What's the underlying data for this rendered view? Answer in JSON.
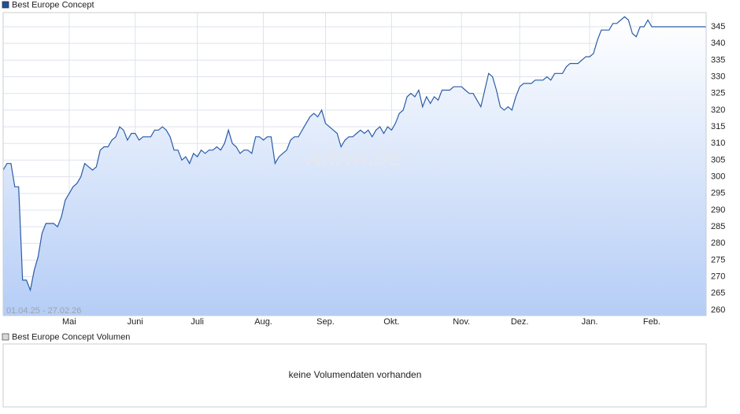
{
  "chart_data": {
    "type": "line",
    "series": [
      {
        "name": "Best Europe Concept",
        "color": "#2a5ca8",
        "values": [
          302,
          304,
          304,
          297,
          297,
          269,
          269,
          266,
          272,
          276,
          283,
          286,
          286,
          286,
          285,
          288,
          293,
          295,
          297,
          298,
          300,
          304,
          303,
          302,
          303,
          308,
          309,
          309,
          311,
          312,
          315,
          314,
          311,
          313,
          313,
          311,
          312,
          312,
          312,
          314,
          314,
          315,
          314,
          312,
          308,
          308,
          305,
          306,
          304,
          307,
          306,
          308,
          307,
          308,
          308,
          309,
          308,
          310,
          314,
          310,
          309,
          307,
          308,
          308,
          307,
          312,
          312,
          311,
          312,
          312,
          304,
          306,
          307,
          308,
          311,
          312,
          312,
          314,
          316,
          318,
          319,
          318,
          320,
          316,
          315,
          314,
          313,
          309,
          311,
          312,
          312,
          313,
          314,
          313,
          314,
          312,
          314,
          315,
          313,
          315,
          314,
          316,
          319,
          320,
          324,
          325,
          324,
          326,
          321,
          324,
          322,
          324,
          323,
          326,
          326,
          326,
          327,
          327,
          327,
          326,
          325,
          325,
          323,
          321,
          326,
          331,
          330,
          326,
          321,
          320,
          321,
          320,
          324,
          327,
          328,
          328,
          328,
          329,
          329,
          329,
          330,
          329,
          331,
          331,
          331,
          333,
          334,
          334,
          334,
          335,
          336,
          336,
          337,
          341,
          344,
          344,
          344,
          346,
          346,
          347,
          348,
          347,
          343,
          342,
          345,
          345,
          347,
          345,
          345,
          345,
          345,
          345,
          345,
          345,
          345,
          345,
          345,
          345,
          345,
          345,
          345,
          345
        ]
      }
    ],
    "xlim": [
      0,
      181
    ],
    "xticks": [
      {
        "value": 17,
        "label": "Mai"
      },
      {
        "value": 34,
        "label": "Juni"
      },
      {
        "value": 50,
        "label": "Juli"
      },
      {
        "value": 67,
        "label": "Aug."
      },
      {
        "value": 83,
        "label": "Sep."
      },
      {
        "value": 100,
        "label": "Okt."
      },
      {
        "value": 118,
        "label": "Nov."
      },
      {
        "value": 133,
        "label": "Dez."
      },
      {
        "value": 151,
        "label": "Jan."
      },
      {
        "value": 167,
        "label": "Feb."
      }
    ],
    "ylim": [
      258.35,
      349.25
    ],
    "yticks": [
      260,
      265,
      270,
      275,
      280,
      285,
      290,
      295,
      300,
      305,
      310,
      315,
      320,
      325,
      330,
      335,
      340,
      345
    ],
    "grid": true,
    "date_range": "01.04.25 - 27.02.26",
    "watermark": "ARIVA.DE"
  },
  "volume_panel": {
    "legend": "Best Europe Concept Volumen",
    "message": "keine Volumendaten vorhanden"
  }
}
